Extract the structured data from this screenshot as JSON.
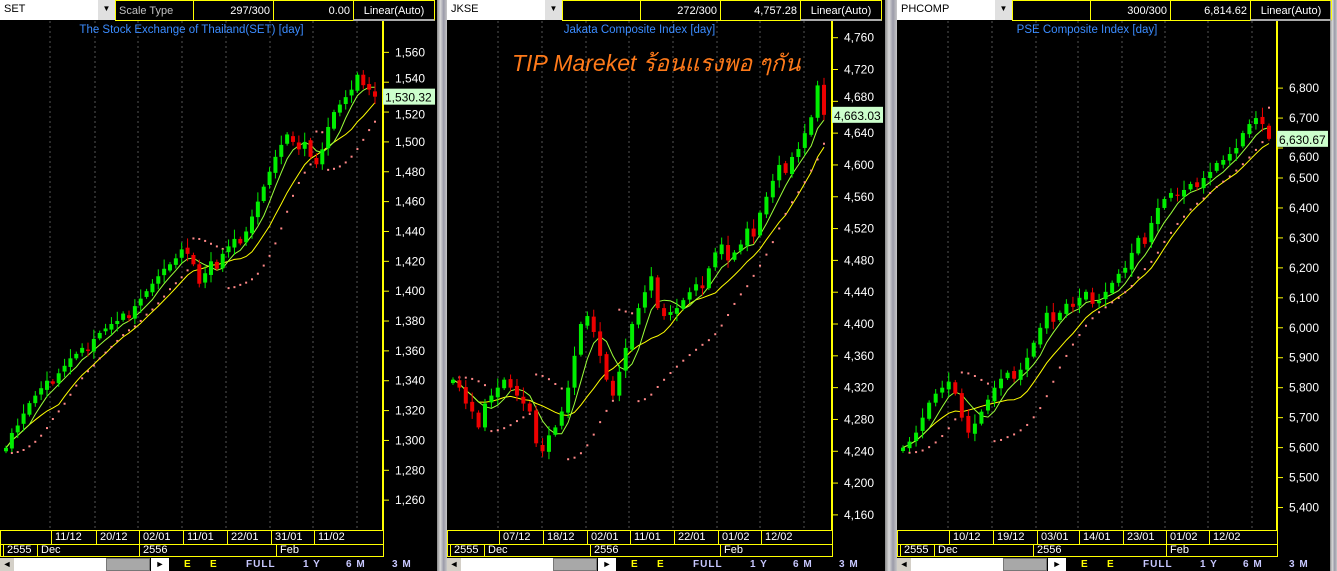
{
  "colors": {
    "up": "#00ee00",
    "down": "#ee0000",
    "ma_short": "#9aff3a",
    "ma_long": "#ffff00",
    "sar": "#ff8888",
    "axis": "#ffff00",
    "title": "#3b8cff",
    "watermark": "#ff7a1a",
    "price_tag_bg": "#ccffcc"
  },
  "watermark": "TIP Mareket ร้อนแรงพอ ๆกัน",
  "toolbar": {
    "left_arrow": "◄",
    "right_arrow": "►",
    "e1": "E",
    "e2": "E",
    "full": "FULL",
    "y1": "1 Y",
    "m6": "6 M",
    "m3": "3 M"
  },
  "panels": [
    {
      "symbol": "SET",
      "scale_label": "Scale Type",
      "count": "297/300",
      "value": "0.00",
      "scale": "Linear(Auto)",
      "title": "The Stock Exchange of Thailand(SET) [day]",
      "last_price": "1,530.32",
      "dates": [
        "11/12",
        "20/12",
        "02/01",
        "11/01",
        "22/01",
        "31/01",
        "11/02"
      ],
      "months": [
        "2555",
        "Dec",
        "2556",
        "Feb"
      ]
    },
    {
      "symbol": "JKSE",
      "scale_label": "",
      "count": "272/300",
      "value": "4,757.28",
      "scale": "Linear(Auto)",
      "title": "Jakata Composite Index [day]",
      "last_price": "4,663.03",
      "dates": [
        "07/12",
        "18/12",
        "02/01",
        "11/01",
        "22/01",
        "01/02",
        "12/02"
      ],
      "months": [
        "2555",
        "Dec",
        "2556",
        "Feb"
      ]
    },
    {
      "symbol": "PHCOMP",
      "scale_label": "",
      "count": "300/300",
      "value": "6,814.62",
      "scale": "Linear(Auto)",
      "title": "PSE Composite Index [day]",
      "last_price": "6,630.67",
      "dates": [
        "10/12",
        "19/12",
        "03/01",
        "14/01",
        "23/01",
        "01/02",
        "12/02"
      ],
      "months": [
        "2555",
        "Dec",
        "2556",
        "Feb"
      ]
    }
  ],
  "chart_data": [
    {
      "type": "candlestick",
      "title": "The Stock Exchange of Thailand(SET) [day]",
      "ylim": [
        1240,
        1581
      ],
      "yticks": [
        1260,
        1280,
        1300,
        1320,
        1340,
        1360,
        1380,
        1400,
        1420,
        1440,
        1460,
        1480,
        1500,
        1520,
        1540,
        1560
      ],
      "close": [
        1295,
        1305,
        1310,
        1318,
        1325,
        1330,
        1335,
        1340,
        1338,
        1345,
        1350,
        1355,
        1358,
        1362,
        1360,
        1368,
        1372,
        1375,
        1378,
        1380,
        1385,
        1382,
        1390,
        1395,
        1400,
        1405,
        1410,
        1415,
        1418,
        1422,
        1428,
        1425,
        1418,
        1405,
        1412,
        1420,
        1415,
        1425,
        1430,
        1435,
        1432,
        1440,
        1450,
        1460,
        1470,
        1480,
        1490,
        1498,
        1505,
        1500,
        1495,
        1500,
        1490,
        1485,
        1495,
        1510,
        1520,
        1525,
        1530,
        1535,
        1545,
        1538,
        1535,
        1530.32
      ]
    },
    {
      "type": "candlestick",
      "title": "Jakata Composite Index [day]",
      "ylim": [
        4141,
        4781
      ],
      "yticks": [
        4160,
        4200,
        4240,
        4280,
        4320,
        4360,
        4400,
        4440,
        4480,
        4520,
        4560,
        4600,
        4640,
        4680,
        4720,
        4760
      ],
      "close": [
        4330,
        4320,
        4300,
        4290,
        4270,
        4300,
        4310,
        4320,
        4330,
        4320,
        4310,
        4300,
        4290,
        4250,
        4240,
        4260,
        4270,
        4290,
        4320,
        4360,
        4400,
        4410,
        4390,
        4360,
        4330,
        4310,
        4340,
        4370,
        4400,
        4420,
        4440,
        4460,
        4420,
        4410,
        4415,
        4420,
        4430,
        4440,
        4450,
        4445,
        4470,
        4490,
        4500,
        4480,
        4490,
        4500,
        4520,
        4510,
        4540,
        4560,
        4580,
        4600,
        4590,
        4610,
        4620,
        4640,
        4660,
        4700,
        4663.03
      ]
    },
    {
      "type": "candlestick",
      "title": "PSE Composite Index [day]",
      "ylim": [
        5325,
        7024
      ],
      "yticks": [
        5400,
        5500,
        5600,
        5700,
        5800,
        5900,
        6000,
        6100,
        6200,
        6300,
        6400,
        6500,
        6600,
        6700,
        6800
      ],
      "close": [
        5600,
        5620,
        5650,
        5700,
        5750,
        5780,
        5800,
        5820,
        5780,
        5700,
        5650,
        5680,
        5720,
        5760,
        5800,
        5830,
        5850,
        5830,
        5860,
        5900,
        5950,
        6000,
        6050,
        6020,
        6050,
        6080,
        6070,
        6100,
        6120,
        6080,
        6090,
        6120,
        6150,
        6180,
        6200,
        6250,
        6300,
        6280,
        6350,
        6400,
        6430,
        6450,
        6440,
        6460,
        6480,
        6470,
        6500,
        6520,
        6550,
        6560,
        6580,
        6600,
        6650,
        6680,
        6700,
        6680,
        6630.67
      ]
    }
  ]
}
